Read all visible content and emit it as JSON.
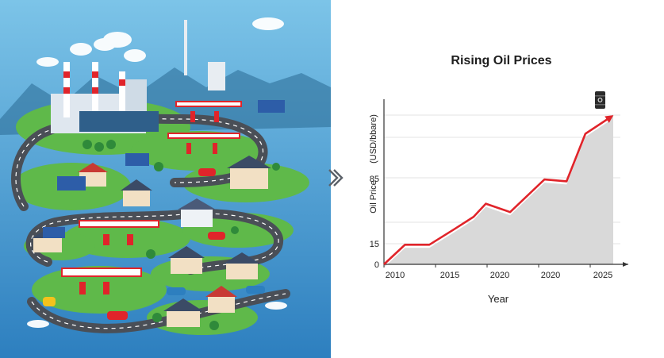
{
  "chart_data": {
    "type": "area",
    "title": "Rising Oil Prices",
    "xlabel": "Year",
    "ylabel": "Oil Price",
    "yunit": "(USD/bbare)",
    "x_tick_labels": [
      "2010",
      "2015",
      "2020",
      "2020",
      "2025"
    ],
    "y_tick_labels": [
      "0",
      "15",
      "85"
    ],
    "series": [
      {
        "color": "#e0242a",
        "x": [
          2009.8,
          2011.7,
          2013.9,
          2016.2,
          2017.9,
          2019.0,
          2021.2,
          2024.3,
          2026.3,
          2028.0,
          2030.3
        ],
        "y": [
          0,
          21,
          21,
          38,
          51,
          65,
          56,
          91,
          89,
          140,
          158
        ]
      }
    ],
    "area_color": "#d9d9d9",
    "grid": "horizontal",
    "legend": "none",
    "annotation": "oil-barrel-icon"
  }
}
